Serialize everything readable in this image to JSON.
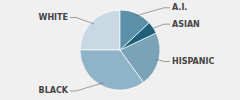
{
  "chart_data": {
    "type": "pie",
    "categories": [
      "WHITE",
      "BLACK",
      "HISPANIC",
      "ASIAN",
      "A.I."
    ],
    "values": [
      25,
      35,
      22,
      5,
      13
    ],
    "colors": [
      "#c8d9e4",
      "#8fb3c7",
      "#7aa3b8",
      "#1e5f7a",
      "#5a90a8"
    ]
  }
}
